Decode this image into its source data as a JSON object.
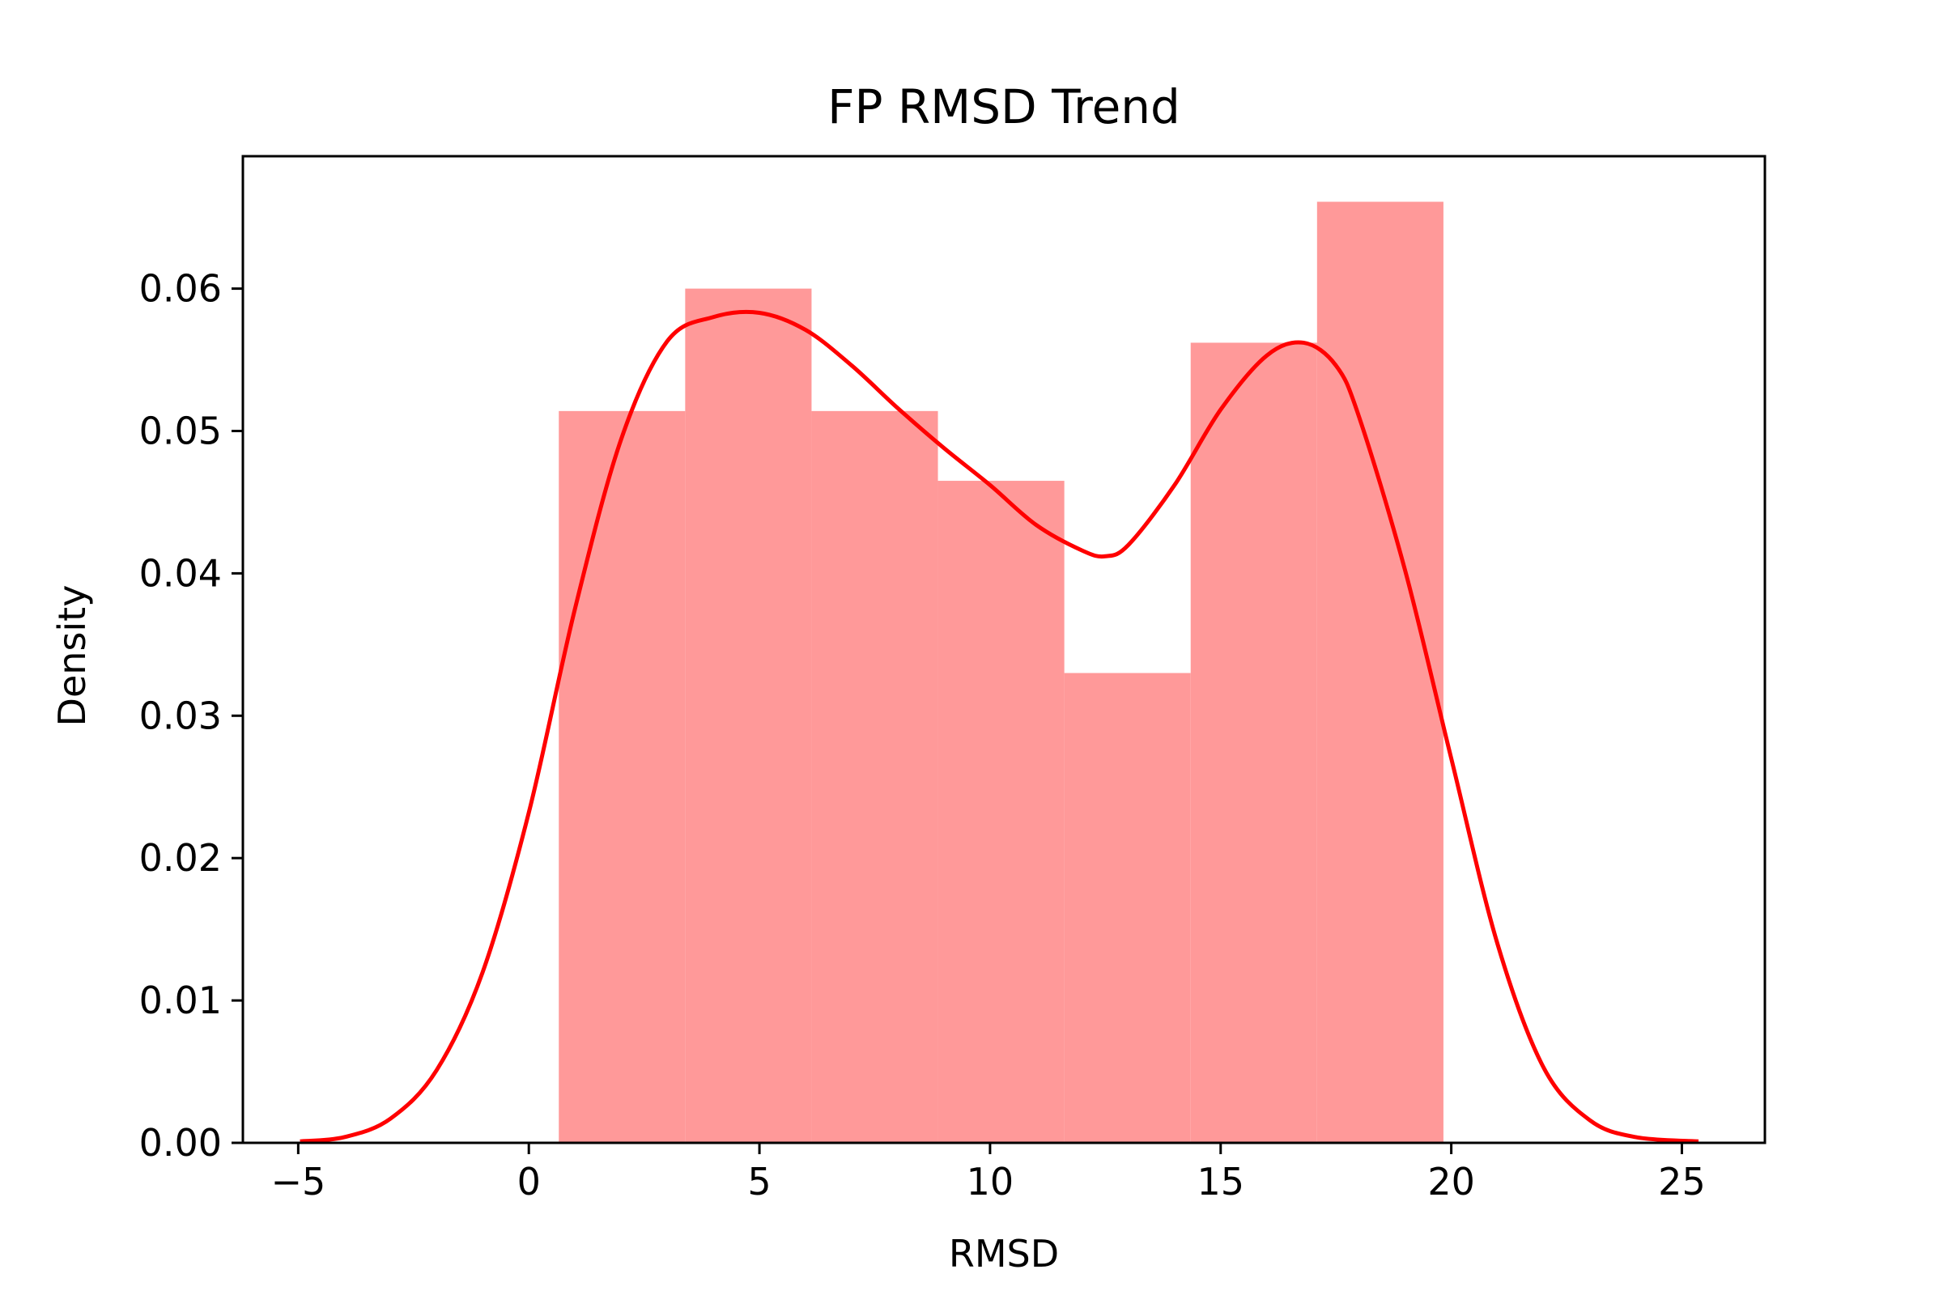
{
  "chart_data": {
    "type": "bar",
    "title": "FP RMSD Trend",
    "xlabel": "RMSD",
    "ylabel": "Density",
    "xlim": [
      -6.2,
      26.8
    ],
    "ylim": [
      0,
      0.0693
    ],
    "xticks": [
      -5,
      0,
      5,
      10,
      15,
      20,
      25
    ],
    "xtick_labels": [
      "−5",
      "0",
      "5",
      "10",
      "15",
      "20",
      "25"
    ],
    "yticks": [
      0,
      0.01,
      0.02,
      0.03,
      0.04,
      0.05,
      0.06
    ],
    "ytick_labels": [
      "0.00",
      "0.01",
      "0.02",
      "0.03",
      "0.04",
      "0.05",
      "0.06"
    ],
    "grid": false,
    "histogram": {
      "bin_edges": [
        0.65,
        3.39,
        6.13,
        8.87,
        11.61,
        14.35,
        17.09,
        19.83
      ],
      "density": [
        0.0514,
        0.06,
        0.0514,
        0.0465,
        0.033,
        0.0562,
        0.0661
      ],
      "color": "#ff9999"
    },
    "kde": {
      "color": "#ff0000",
      "x": [
        -4.96,
        -4,
        -3,
        -2,
        -1,
        0,
        1,
        2,
        3,
        4,
        5,
        6,
        7,
        8,
        9,
        10,
        11,
        12,
        12.5,
        13,
        14,
        15,
        16,
        16.8,
        17.5,
        18,
        19,
        20,
        21,
        22,
        23,
        24,
        25.36
      ],
      "y": [
        0.0001,
        0.0004,
        0.0017,
        0.0051,
        0.012,
        0.0232,
        0.0375,
        0.0494,
        0.0563,
        0.058,
        0.0583,
        0.0571,
        0.0546,
        0.0516,
        0.0488,
        0.0462,
        0.0434,
        0.0416,
        0.0412,
        0.042,
        0.0462,
        0.0515,
        0.0553,
        0.0562,
        0.0546,
        0.051,
        0.0402,
        0.027,
        0.014,
        0.0053,
        0.0016,
        0.0004,
        0.0001
      ]
    }
  }
}
